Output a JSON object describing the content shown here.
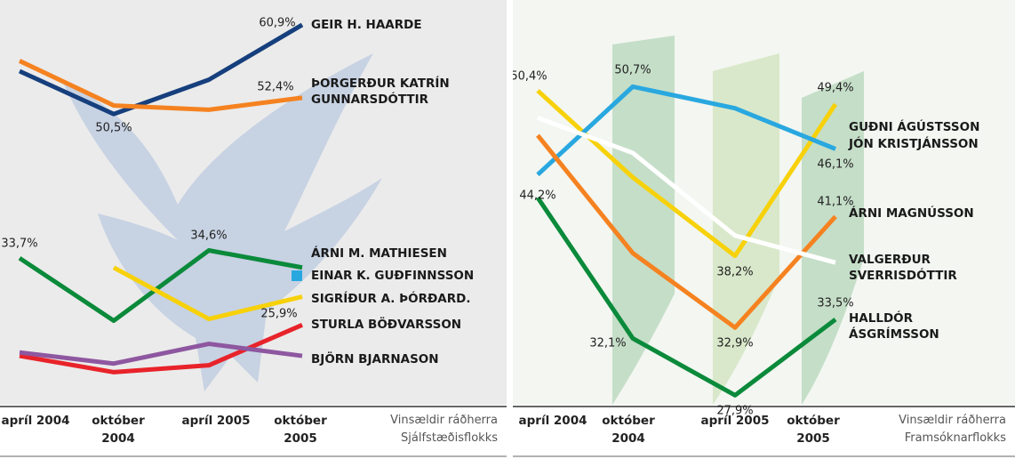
{
  "chart_data": [
    {
      "type": "line",
      "note": "Vinsældir ráðherra Sjálfstæðisflokks",
      "categories": [
        "apríl 2004",
        "október 2004",
        "apríl 2005",
        "október 2005"
      ],
      "ylim": [
        16.6,
        63.8
      ],
      "series": [
        {
          "name": "GEIR H. HAARDE",
          "color": "#163f7d",
          "values": [
            55.5,
            50.5,
            54.5,
            60.9
          ],
          "value_labels": [
            null,
            "50,5%",
            null,
            "60,9%"
          ]
        },
        {
          "name": "ÞORGERÐUR KATRÍN GUNNARSDÓTTIR",
          "color": "#f58220",
          "values": [
            56.7,
            51.5,
            51.0,
            52.4
          ],
          "value_labels": [
            null,
            null,
            null,
            "52,4%"
          ]
        },
        {
          "name": "ÁRNI M. MATHIESEN",
          "color": "#0a8a3a",
          "values": [
            33.7,
            26.4,
            34.6,
            32.6
          ],
          "value_labels": [
            "33,7%",
            null,
            "34,6%",
            null
          ]
        },
        {
          "name": "EINAR K. GUÐFINNSSON",
          "color": "#29a8e0",
          "values": [
            null,
            null,
            null,
            null
          ]
        },
        {
          "name": "SIGRÍÐUR A. ÞÓRÐARD.",
          "color": "#f7d10a",
          "values": [
            null,
            32.6,
            26.6,
            29.2
          ]
        },
        {
          "name": "STURLA BÖÐVARSSON",
          "color": "#e8232a",
          "values": [
            22.3,
            20.4,
            21.2,
            25.9
          ],
          "value_labels": [
            null,
            null,
            null,
            "25,9%"
          ]
        },
        {
          "name": "BJÖRN BJARNASON",
          "color": "#8e57a0",
          "values": [
            22.7,
            21.4,
            23.7,
            22.3
          ]
        }
      ]
    },
    {
      "type": "line",
      "note": "Vinsældir ráðherra Framsóknarflokks",
      "categories": [
        "apríl 2004",
        "október 2004",
        "apríl 2005",
        "október 2005"
      ],
      "ylim": [
        27.2,
        57.1
      ],
      "series": [
        {
          "name": "GUÐNI ÁGÚSTSSON",
          "color": "#f7d10a",
          "values": [
            50.4,
            44.0,
            38.2,
            49.4
          ],
          "value_labels": [
            "50,4%",
            null,
            "38,2%",
            "49,4%"
          ]
        },
        {
          "name": "JÓN KRISTJÁNSSON",
          "color": "#29a8e0",
          "values": [
            44.2,
            50.7,
            49.1,
            46.1
          ],
          "value_labels": [
            "44,2%",
            "50,7%",
            null,
            "46,1%"
          ]
        },
        {
          "name": "ÁRNI MAGNÚSSON",
          "color": "#f58220",
          "values": [
            47.1,
            38.4,
            32.9,
            41.1
          ],
          "value_labels": [
            null,
            null,
            "32,9%",
            "41,1%"
          ]
        },
        {
          "name": "VALGERÐUR SVERRISDÓTTIR",
          "color": "#ffffff",
          "values": [
            48.4,
            45.8,
            39.7,
            37.7
          ]
        },
        {
          "name": "HALLDÓR ÁSGRÍMSSON",
          "color": "#0a8a3a",
          "values": [
            42.5,
            32.1,
            27.9,
            33.5
          ],
          "value_labels": [
            null,
            "32,1%",
            "27,9%",
            "33,5%"
          ]
        }
      ]
    }
  ]
}
